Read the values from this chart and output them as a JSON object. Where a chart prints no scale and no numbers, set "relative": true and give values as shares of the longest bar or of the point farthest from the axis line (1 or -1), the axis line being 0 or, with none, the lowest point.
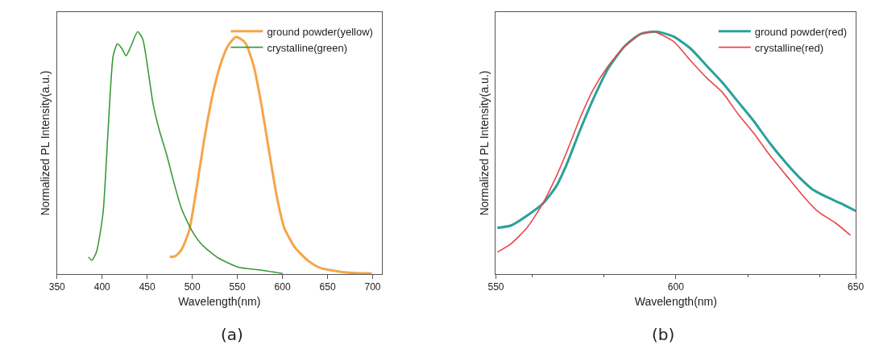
{
  "chart_data": [
    {
      "type": "line",
      "xlabel": "Wavelength(nm)",
      "ylabel": "Normalized PL Intensity(a.u.)",
      "relative": true,
      "xlim": [
        350,
        710
      ],
      "xticks": [
        350,
        400,
        450,
        500,
        550,
        600,
        650,
        700
      ],
      "tick_labels": "x",
      "legend": "top right",
      "annotations": [
        "(a)"
      ],
      "series": [
        {
          "name": "ground powder(yellow)",
          "color": "#f5a54a",
          "x": [
            475,
            481,
            488,
            496.6,
            505,
            513.7,
            522,
            530.9,
            539.4,
            548,
            553.7,
            559.4,
            568,
            576.6,
            585,
            593.7,
            602,
            613.7,
            628,
            642,
            671,
            699
          ],
          "values": [
            0.07,
            0.073,
            0.1,
            0.18,
            0.36,
            0.565,
            0.73,
            0.86,
            0.94,
            0.977,
            0.97,
            0.95,
            0.86,
            0.7,
            0.51,
            0.32,
            0.19,
            0.11,
            0.056,
            0.025,
            0.006,
            0.002
          ]
        },
        {
          "name": "crystalline(green)",
          "color": "#3a9a3a",
          "x": [
            385,
            388.6,
            393.7,
            401,
            406.6,
            412.3,
            417,
            422,
            426.6,
            432,
            439.4,
            445,
            451,
            456.6,
            463.7,
            471,
            479.4,
            488,
            499.4,
            510.9,
            528,
            551,
            573.7,
            600
          ],
          "values": [
            0.07,
            0.056,
            0.09,
            0.25,
            0.59,
            0.9,
            0.95,
            0.93,
            0.9,
            0.94,
            1.0,
            0.97,
            0.84,
            0.7,
            0.59,
            0.5,
            0.38,
            0.27,
            0.18,
            0.12,
            0.068,
            0.028,
            0.017,
            0.002
          ]
        }
      ]
    },
    {
      "type": "line",
      "xlabel": "Wavelength(nm)",
      "ylabel": "Normalized PL Intensity(a.u.)",
      "relative": true,
      "xlim": [
        550,
        650
      ],
      "xticks": [
        550,
        600,
        650
      ],
      "tick_labels": "x",
      "legend": "top right",
      "annotations": [
        "(b)"
      ],
      "series": [
        {
          "name": "ground powder(red)",
          "color": "#2aa19a",
          "x": [
            550.4,
            554.2,
            558.6,
            563,
            566.7,
            569.6,
            573.3,
            577,
            581.3,
            585.8,
            590.2,
            594.6,
            599.3,
            604.1,
            608.5,
            612.9,
            617.3,
            621.7,
            626.1,
            630.5,
            634.2,
            637.9,
            641.6,
            646,
            650
          ],
          "values": [
            0.19,
            0.2,
            0.24,
            0.29,
            0.36,
            0.45,
            0.59,
            0.72,
            0.85,
            0.94,
            0.99,
            1.0,
            0.98,
            0.93,
            0.86,
            0.79,
            0.71,
            0.63,
            0.54,
            0.46,
            0.4,
            0.35,
            0.32,
            0.29,
            0.26
          ]
        },
        {
          "name": "crystalline(red)",
          "color": "#e8474a",
          "x": [
            550.4,
            554.2,
            558.6,
            563,
            566.7,
            569.6,
            573.3,
            577,
            581.3,
            585.8,
            590.2,
            593.8,
            599.3,
            604.1,
            608.5,
            612.9,
            617.3,
            621.7,
            626.1,
            630.5,
            634.9,
            639.3,
            644.4,
            648.5
          ],
          "values": [
            0.09,
            0.125,
            0.19,
            0.29,
            0.4,
            0.5,
            0.64,
            0.76,
            0.86,
            0.94,
            0.99,
            1.0,
            0.96,
            0.88,
            0.81,
            0.75,
            0.66,
            0.58,
            0.49,
            0.41,
            0.33,
            0.26,
            0.21,
            0.16
          ]
        }
      ]
    }
  ]
}
